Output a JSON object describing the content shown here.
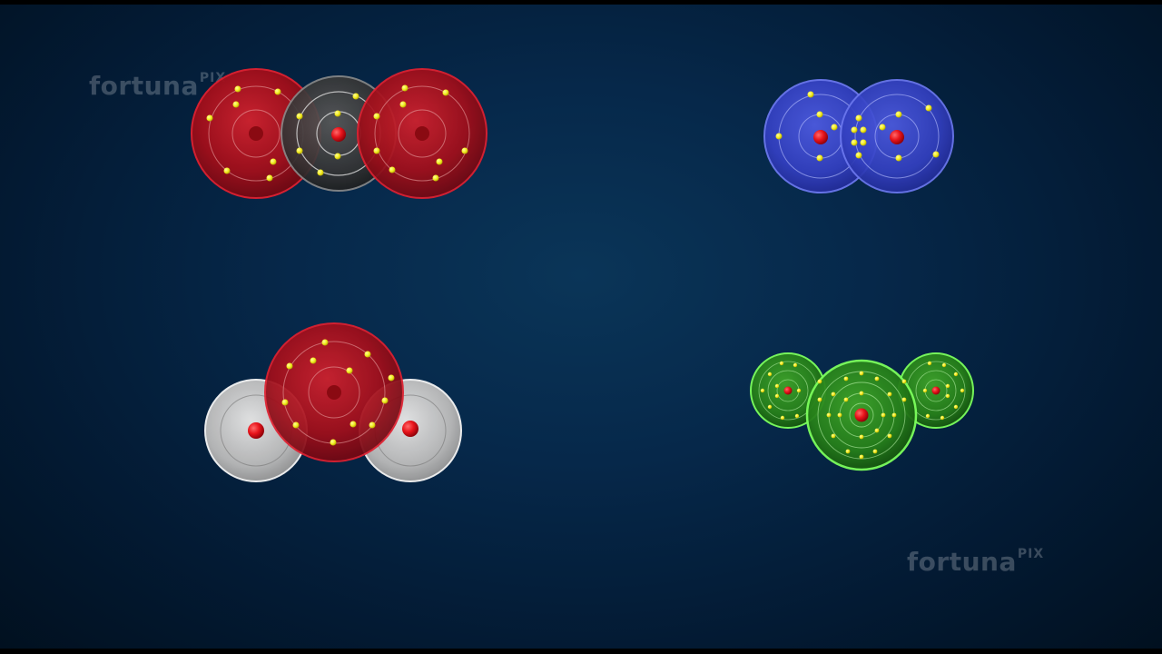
{
  "watermark": {
    "main": "fortuna",
    "sub": "PIX"
  },
  "colors": {
    "oxygen": "#b3131f",
    "carbon": "#3a3a3a",
    "nitrogen": "#3342c4",
    "hydrogen": "#cfcfcf",
    "chlorine": "#2f8a1e",
    "electron": "#f5f01e",
    "nucleus": "#e8141b",
    "background": "#06284a"
  },
  "molecules": [
    {
      "id": "co2",
      "icon": "carbon-dioxide-molecule-icon"
    },
    {
      "id": "n2",
      "icon": "nitrogen-molecule-icon"
    },
    {
      "id": "h2o",
      "icon": "water-molecule-icon"
    },
    {
      "id": "cl-triple",
      "icon": "green-triatomic-molecule-icon"
    }
  ]
}
